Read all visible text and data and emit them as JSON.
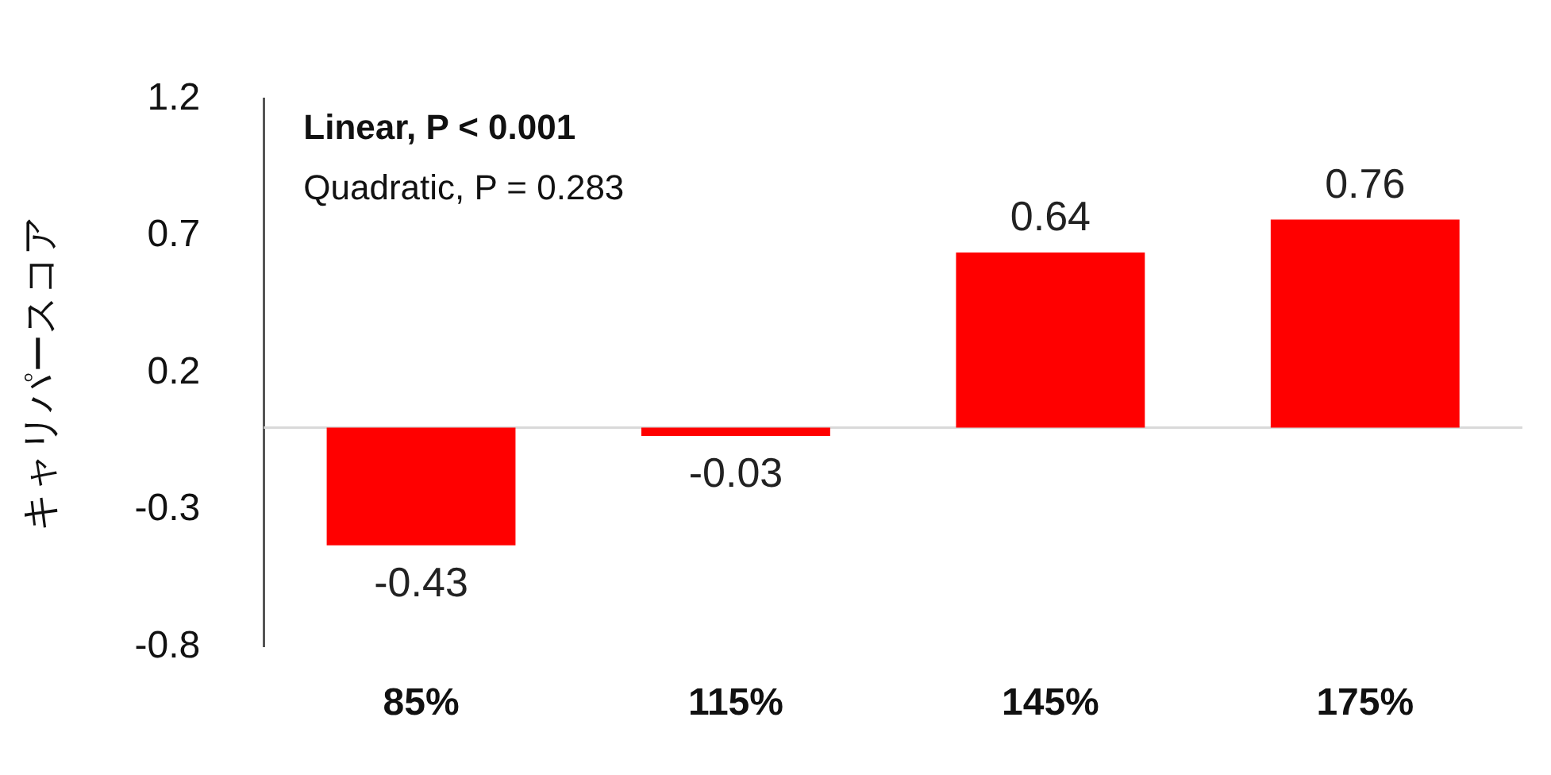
{
  "chart_data": {
    "type": "bar",
    "ylabel": "キャリパースコア",
    "categories": [
      "85%",
      "115%",
      "145%",
      "175%"
    ],
    "values": [
      -0.43,
      -0.03,
      0.64,
      0.76
    ],
    "color": "#ff0000",
    "ylim": [
      -0.8,
      1.2
    ],
    "yticks": [
      -0.8,
      -0.3,
      0.2,
      0.7,
      1.2
    ],
    "grid": false,
    "legend": false,
    "data_labels": true,
    "ref_lines": [
      {
        "axis": "y",
        "value": 0,
        "color": "#d9d9d9"
      }
    ],
    "annotations": [
      "Linear, P < 0.001",
      "Quadratic, P = 0.283"
    ]
  }
}
